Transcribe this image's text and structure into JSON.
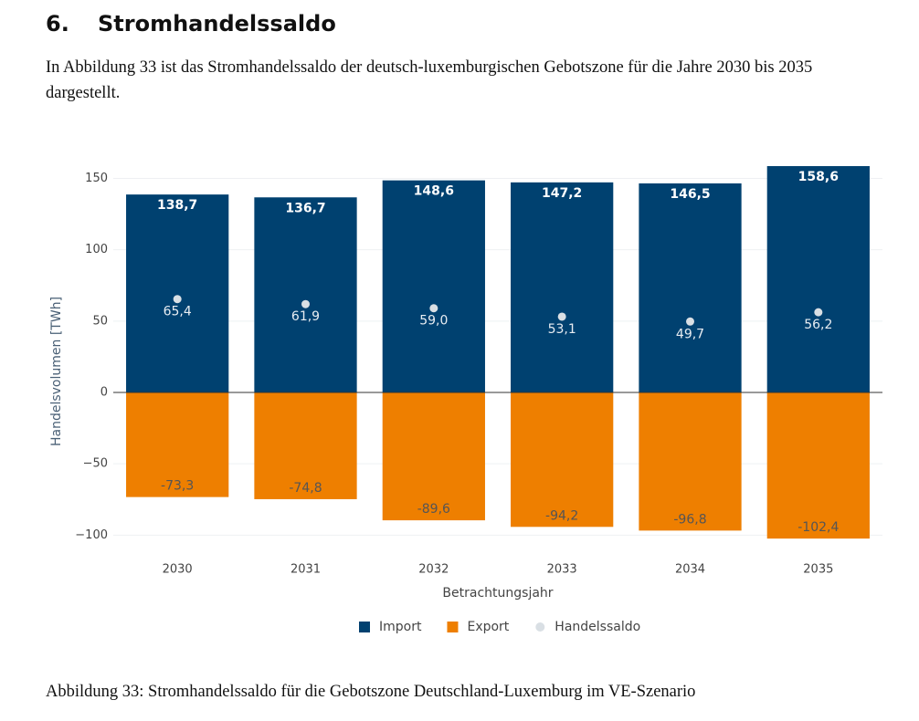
{
  "heading": {
    "number": "6.",
    "title": "Stromhandelssaldo"
  },
  "paragraph": "In Abbildung 33 ist das Stromhandelssaldo der deutsch-luxemburgischen Gebotszone für die Jahre 2030 bis 2035 dargestellt.",
  "chart_data": {
    "type": "bar",
    "x_label": "Betrachtungsjahr",
    "y_label": "Handelsvolumen [TWh]",
    "categories": [
      "2030",
      "2031",
      "2032",
      "2033",
      "2034",
      "2035"
    ],
    "series": [
      {
        "name": "Import",
        "color": "#004170",
        "values": [
          138.7,
          136.7,
          148.6,
          147.2,
          146.5,
          158.6
        ],
        "value_labels": [
          "138,7",
          "136,7",
          "148,6",
          "147,2",
          "146,5",
          "158,6"
        ]
      },
      {
        "name": "Export",
        "color": "#ee7f00",
        "values": [
          -73.3,
          -74.8,
          -89.6,
          -94.2,
          -96.8,
          -102.4
        ],
        "value_labels": [
          "-73,3",
          "-74,8",
          "-89,6",
          "-94,2",
          "-96,8",
          "-102,4"
        ]
      },
      {
        "name": "Handelssaldo",
        "type": "scatter",
        "color": "#d9dfe4",
        "values": [
          65.4,
          61.9,
          59.0,
          53.1,
          49.7,
          56.2
        ],
        "value_labels": [
          "65,4",
          "61,9",
          "59,0",
          "53,1",
          "49,7",
          "56,2"
        ]
      }
    ],
    "ylim": [
      -110,
      165
    ],
    "yticks": [
      {
        "value": -100,
        "label": "−100"
      },
      {
        "value": -50,
        "label": "−50"
      },
      0,
      50,
      100,
      150
    ],
    "grid": true,
    "legend": "bottom"
  },
  "caption": "Abbildung 33: Stromhandelssaldo für die Gebotszone Deutschland-Luxemburg im VE-Szenario"
}
